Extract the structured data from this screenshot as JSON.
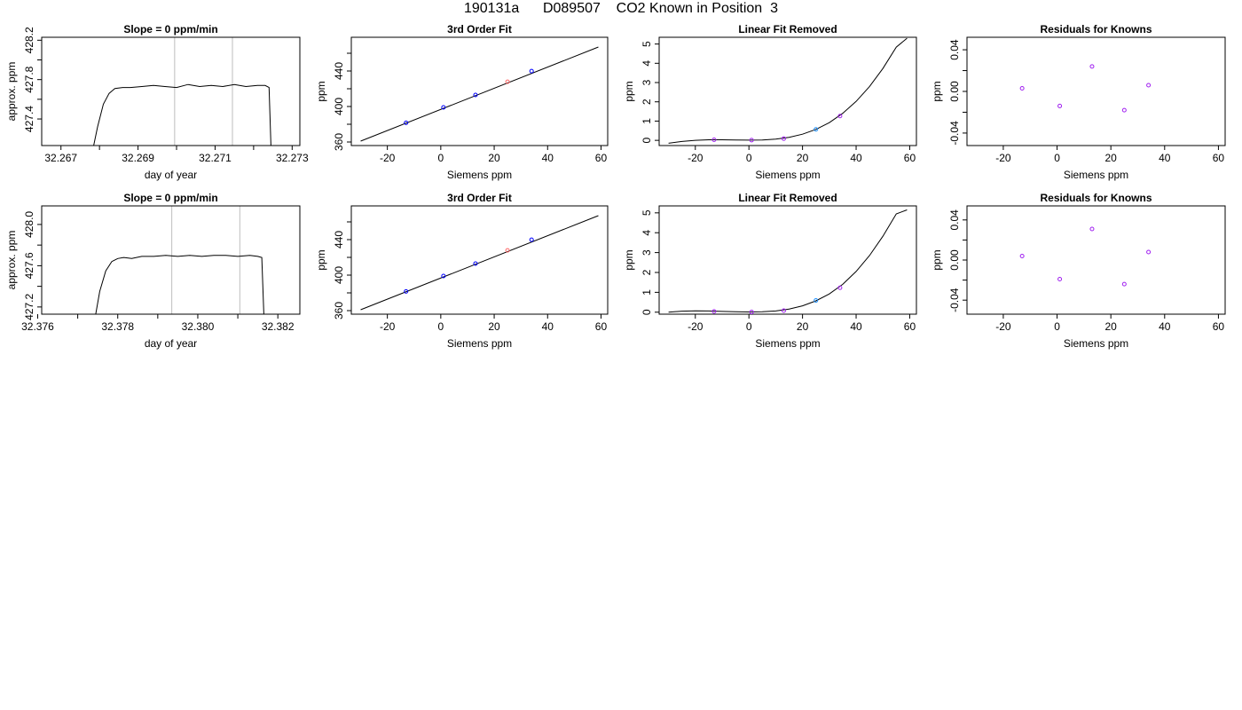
{
  "page": {
    "title": "190131a      D089507    CO2 Known in Position  3"
  },
  "colors": {
    "line": "#000000",
    "guide": "#bebebe",
    "knowns_blue": "#0000ff",
    "knowns_purple": "#a020f0",
    "unknown_red": "#ff6666",
    "unknown_cyan": "#1e90ff"
  },
  "chart_data": [
    {
      "type": "line",
      "title": "Slope =  0  ppm/min",
      "xlabel": "day of year",
      "ylabel": "approx. ppm",
      "xlim": [
        32.2665,
        32.2732
      ],
      "ylim": [
        427.13,
        428.23
      ],
      "grid": false,
      "x_ticks": [
        32.267,
        32.268,
        32.269,
        32.27,
        32.271,
        32.272,
        32.273
      ],
      "x_tick_labels": [
        "32.267",
        "",
        "32.269",
        "",
        "32.271",
        "",
        "32.273"
      ],
      "y_ticks": [
        427.4,
        427.6,
        427.8,
        428.0,
        428.2
      ],
      "y_tick_labels": [
        "427.4",
        "",
        "427.8",
        "",
        "428.2"
      ],
      "vlines": [
        32.26995,
        32.27145
      ],
      "series": [
        {
          "x": [
            32.26785,
            32.26795,
            32.2681,
            32.26825,
            32.2684,
            32.2686,
            32.2688,
            32.2691,
            32.2694,
            32.2697,
            32.27,
            32.2703,
            32.2706,
            32.2709,
            32.2712,
            32.2715,
            32.2718,
            32.2721,
            32.2723,
            32.2724,
            32.27245
          ],
          "y": [
            427.13,
            427.32,
            427.55,
            427.66,
            427.71,
            427.72,
            427.72,
            427.73,
            427.74,
            427.73,
            427.72,
            427.75,
            427.73,
            427.74,
            427.73,
            427.75,
            427.73,
            427.74,
            427.74,
            427.72,
            427.13
          ]
        }
      ]
    },
    {
      "type": "scatter",
      "title": "3rd Order Fit",
      "xlabel": "Siemens ppm",
      "ylabel": "ppm",
      "xlim": [
        -33.5,
        62.5
      ],
      "ylim": [
        356,
        478
      ],
      "grid": false,
      "x_ticks": [
        -20,
        0,
        20,
        40,
        60
      ],
      "x_tick_labels": [
        "-20",
        "0",
        "20",
        "40",
        "60"
      ],
      "y_ticks": [
        360,
        380,
        400,
        420,
        440,
        460
      ],
      "y_tick_labels": [
        "360",
        "",
        "400",
        "",
        "440",
        ""
      ],
      "fit_line": {
        "x": [
          -30,
          59
        ],
        "y": [
          361,
          467
        ]
      },
      "series": [
        {
          "x": [
            -13,
            1,
            13,
            34
          ],
          "y": [
            381.6,
            399,
            413,
            439.9
          ]
        },
        {
          "x": [
            25
          ],
          "y": [
            427.9
          ]
        }
      ]
    },
    {
      "type": "scatter",
      "title": "Linear Fit Removed",
      "xlabel": "Siemens ppm",
      "ylabel": "ppm",
      "xlim": [
        -33.5,
        62.5
      ],
      "ylim": [
        -0.27,
        5.35
      ],
      "grid": false,
      "x_ticks": [
        -20,
        0,
        20,
        40,
        60
      ],
      "x_tick_labels": [
        "-20",
        "0",
        "20",
        "40",
        "60"
      ],
      "y_ticks": [
        0,
        1,
        2,
        3,
        4,
        5
      ],
      "y_tick_labels": [
        "0",
        "1",
        "2",
        "3",
        "4",
        "5"
      ],
      "fit_curve": {
        "x": [
          -30,
          -25,
          -20,
          -15,
          -10,
          -5,
          0,
          5,
          10,
          15,
          20,
          25,
          30,
          35,
          40,
          45,
          50,
          55,
          59
        ],
        "y": [
          -0.15,
          -0.06,
          0.0,
          0.03,
          0.03,
          0.02,
          0.01,
          0.02,
          0.06,
          0.16,
          0.32,
          0.57,
          0.92,
          1.4,
          2.02,
          2.79,
          3.73,
          4.84,
          5.3
        ]
      },
      "series": [
        {
          "x": [
            -13,
            1,
            13,
            34
          ],
          "y": [
            0.03,
            0.01,
            0.09,
            1.26
          ]
        },
        {
          "x": [
            25
          ],
          "y": [
            0.57
          ]
        }
      ]
    },
    {
      "type": "scatter",
      "title": "Residuals for Knowns",
      "xlabel": "Siemens ppm",
      "ylabel": "ppm",
      "xlim": [
        -33.5,
        62.5
      ],
      "ylim": [
        -0.052,
        0.052
      ],
      "grid": false,
      "x_ticks": [
        -20,
        0,
        20,
        40,
        60
      ],
      "x_tick_labels": [
        "-20",
        "0",
        "20",
        "40",
        "60"
      ],
      "y_ticks": [
        -0.04,
        -0.02,
        0.0,
        0.02,
        0.04
      ],
      "y_tick_labels": [
        "-0.04",
        "",
        "0.00",
        "",
        "0.04"
      ],
      "series": [
        {
          "x": [
            -13,
            1,
            13,
            25,
            34
          ],
          "y": [
            0.003,
            -0.014,
            0.024,
            -0.018,
            0.006
          ]
        }
      ]
    },
    {
      "type": "line",
      "title": "Slope =  0  ppm/min",
      "xlabel": "day of year",
      "ylabel": "approx. ppm",
      "xlim": [
        32.3761,
        32.38255
      ],
      "ylim": [
        427.13,
        428.18
      ],
      "grid": false,
      "x_ticks": [
        32.376,
        32.377,
        32.378,
        32.379,
        32.38,
        32.381,
        32.382
      ],
      "x_tick_labels": [
        "32.376",
        "",
        "32.378",
        "",
        "32.380",
        "",
        "32.382"
      ],
      "y_ticks": [
        427.2,
        427.4,
        427.6,
        427.8,
        428.0
      ],
      "y_tick_labels": [
        "427.2",
        "",
        "427.6",
        "",
        "428.0"
      ],
      "vlines": [
        32.37935,
        32.38105
      ],
      "series": [
        {
          "x": [
            32.37745,
            32.37755,
            32.3777,
            32.37785,
            32.378,
            32.37815,
            32.37835,
            32.3786,
            32.3789,
            32.3792,
            32.3795,
            32.3798,
            32.3801,
            32.3804,
            32.3807,
            32.381,
            32.3813,
            32.3815,
            32.3816,
            32.38165
          ],
          "y": [
            427.13,
            427.35,
            427.55,
            427.64,
            427.67,
            427.68,
            427.67,
            427.69,
            427.69,
            427.7,
            427.69,
            427.7,
            427.69,
            427.7,
            427.7,
            427.69,
            427.7,
            427.69,
            427.68,
            427.13
          ]
        }
      ]
    },
    {
      "type": "scatter",
      "title": "3rd Order Fit",
      "xlabel": "Siemens ppm",
      "ylabel": "ppm",
      "xlim": [
        -33.5,
        62.5
      ],
      "ylim": [
        356,
        478
      ],
      "grid": false,
      "x_ticks": [
        -20,
        0,
        20,
        40,
        60
      ],
      "x_tick_labels": [
        "-20",
        "0",
        "20",
        "40",
        "60"
      ],
      "y_ticks": [
        360,
        380,
        400,
        420,
        440,
        460
      ],
      "y_tick_labels": [
        "360",
        "",
        "400",
        "",
        "440",
        ""
      ],
      "fit_line": {
        "x": [
          -30,
          59
        ],
        "y": [
          361,
          467
        ]
      },
      "series": [
        {
          "x": [
            -13,
            1,
            13,
            34
          ],
          "y": [
            381.6,
            399,
            413,
            439.9
          ]
        },
        {
          "x": [
            25
          ],
          "y": [
            427.9
          ]
        }
      ]
    },
    {
      "type": "scatter",
      "title": "Linear Fit Removed",
      "xlabel": "Siemens ppm",
      "ylabel": "ppm",
      "xlim": [
        -33.5,
        62.5
      ],
      "ylim": [
        -0.1,
        5.35
      ],
      "grid": false,
      "x_ticks": [
        -20,
        0,
        20,
        40,
        60
      ],
      "x_tick_labels": [
        "-20",
        "0",
        "20",
        "40",
        "60"
      ],
      "y_ticks": [
        0,
        1,
        2,
        3,
        4,
        5
      ],
      "y_tick_labels": [
        "0",
        "1",
        "2",
        "3",
        "4",
        "5"
      ],
      "fit_curve": {
        "x": [
          -30,
          -25,
          -20,
          -15,
          -10,
          -5,
          0,
          5,
          10,
          15,
          20,
          25,
          30,
          35,
          40,
          45,
          50,
          55,
          59
        ],
        "y": [
          0.0,
          0.05,
          0.07,
          0.06,
          0.04,
          0.02,
          0.01,
          0.02,
          0.06,
          0.16,
          0.32,
          0.57,
          0.92,
          1.4,
          2.05,
          2.85,
          3.82,
          4.95,
          5.15
        ]
      },
      "series": [
        {
          "x": [
            -13,
            1,
            13,
            34
          ],
          "y": [
            0.04,
            0.01,
            0.08,
            1.23
          ]
        },
        {
          "x": [
            25
          ],
          "y": [
            0.59
          ]
        }
      ]
    },
    {
      "type": "scatter",
      "title": "Residuals for Knowns",
      "xlabel": "Siemens ppm",
      "ylabel": "ppm",
      "xlim": [
        -33.5,
        62.5
      ],
      "ylim": [
        -0.054,
        0.054
      ],
      "grid": false,
      "x_ticks": [
        -20,
        0,
        20,
        40,
        60
      ],
      "x_tick_labels": [
        "-20",
        "0",
        "20",
        "40",
        "60"
      ],
      "y_ticks": [
        -0.04,
        -0.02,
        0.0,
        0.02,
        0.04
      ],
      "y_tick_labels": [
        "-0.04",
        "",
        "0.00",
        "",
        "0.04"
      ],
      "series": [
        {
          "x": [
            -13,
            1,
            13,
            25,
            34
          ],
          "y": [
            0.004,
            -0.019,
            0.031,
            -0.024,
            0.008
          ]
        }
      ]
    }
  ]
}
